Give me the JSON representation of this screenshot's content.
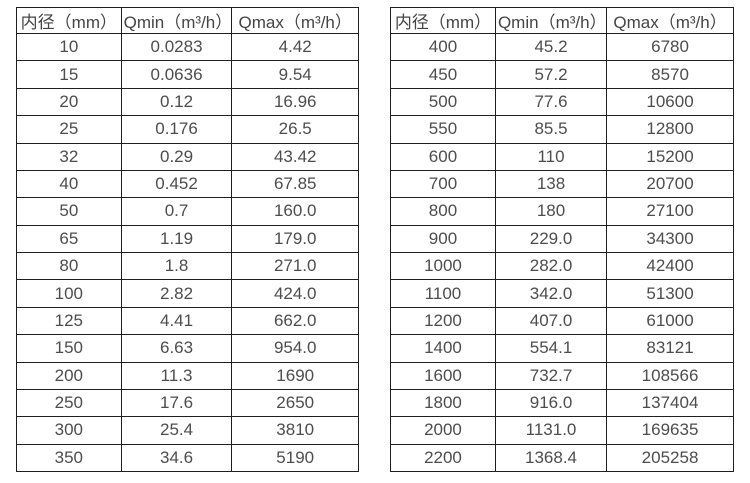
{
  "page": {
    "background_color": "#ffffff",
    "border_color": "#1f1f1f",
    "text_color": "#4d4d4d"
  },
  "tables": [
    {
      "name": "flow-rate-table-small-diameters",
      "headers": [
        "内径（mm）",
        "Qmin（m³/h）",
        "Qmax（m³/h）"
      ],
      "rows": [
        [
          "10",
          "0.0283",
          "4.42"
        ],
        [
          "15",
          "0.0636",
          "9.54"
        ],
        [
          "20",
          "0.12",
          "16.96"
        ],
        [
          "25",
          "0.176",
          "26.5"
        ],
        [
          "32",
          "0.29",
          "43.42"
        ],
        [
          "40",
          "0.452",
          "67.85"
        ],
        [
          "50",
          "0.7",
          "160.0"
        ],
        [
          "65",
          "1.19",
          "179.0"
        ],
        [
          "80",
          "1.8",
          "271.0"
        ],
        [
          "100",
          "2.82",
          "424.0"
        ],
        [
          "125",
          "4.41",
          "662.0"
        ],
        [
          "150",
          "6.63",
          "954.0"
        ],
        [
          "200",
          "11.3",
          "1690"
        ],
        [
          "250",
          "17.6",
          "2650"
        ],
        [
          "300",
          "25.4",
          "3810"
        ],
        [
          "350",
          "34.6",
          "5190"
        ]
      ]
    },
    {
      "name": "flow-rate-table-large-diameters",
      "headers": [
        "内径（mm）",
        "Qmin（m³/h）",
        "Qmax（m³/h）"
      ],
      "rows": [
        [
          "400",
          "45.2",
          "6780"
        ],
        [
          "450",
          "57.2",
          "8570"
        ],
        [
          "500",
          "77.6",
          "10600"
        ],
        [
          "550",
          "85.5",
          "12800"
        ],
        [
          "600",
          "110",
          "15200"
        ],
        [
          "700",
          "138",
          "20700"
        ],
        [
          "800",
          "180",
          "27100"
        ],
        [
          "900",
          "229.0",
          "34300"
        ],
        [
          "1000",
          "282.0",
          "42400"
        ],
        [
          "1100",
          "342.0",
          "51300"
        ],
        [
          "1200",
          "407.0",
          "61000"
        ],
        [
          "1400",
          "554.1",
          "83121"
        ],
        [
          "1600",
          "732.7",
          "108566"
        ],
        [
          "1800",
          "916.0",
          "137404"
        ],
        [
          "2000",
          "1131.0",
          "169635"
        ],
        [
          "2200",
          "1368.4",
          "205258"
        ]
      ]
    }
  ]
}
